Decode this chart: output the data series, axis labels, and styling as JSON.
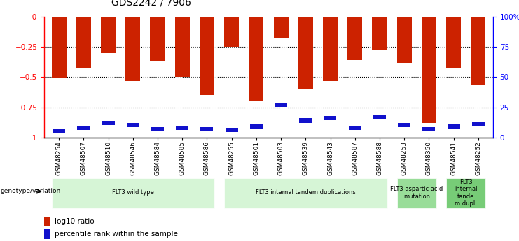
{
  "title": "GDS2242 / 7906",
  "samples": [
    "GSM48254",
    "GSM48507",
    "GSM48510",
    "GSM48546",
    "GSM48584",
    "GSM48585",
    "GSM48586",
    "GSM48255",
    "GSM48501",
    "GSM48503",
    "GSM48539",
    "GSM48543",
    "GSM48587",
    "GSM48588",
    "GSM48253",
    "GSM48350",
    "GSM48541",
    "GSM48252"
  ],
  "log10_ratio": [
    -0.51,
    -0.43,
    -0.3,
    -0.53,
    -0.37,
    -0.5,
    -0.65,
    -0.25,
    -0.7,
    -0.18,
    -0.6,
    -0.53,
    -0.36,
    -0.27,
    -0.38,
    -0.88,
    -0.43,
    -0.57
  ],
  "percentile_rank": [
    5,
    8,
    12,
    10,
    7,
    8,
    7,
    6,
    9,
    27,
    14,
    16,
    8,
    17,
    10,
    7,
    9,
    11
  ],
  "bar_color": "#cc2200",
  "blue_color": "#1111cc",
  "ylim_left": [
    -1,
    0
  ],
  "ylim_right": [
    0,
    100
  ],
  "yticks_left": [
    0,
    -0.25,
    -0.5,
    -0.75,
    -1
  ],
  "ytick_labels_left": [
    "−0",
    "−0.25",
    "−0.5",
    "−0.75",
    "−1"
  ],
  "yticks_right": [
    100,
    75,
    50,
    25,
    0
  ],
  "ytick_labels_right": [
    "100%",
    "75",
    "50",
    "25",
    "0"
  ],
  "groups": [
    {
      "label": "FLT3 wild type",
      "start": 0,
      "end": 6,
      "color": "#d6f5d6"
    },
    {
      "label": "FLT3 internal tandem duplications",
      "start": 7,
      "end": 13,
      "color": "#d6f5d6"
    },
    {
      "label": "FLT3 aspartic acid\nmutation",
      "start": 14,
      "end": 15,
      "color": "#99dd99"
    },
    {
      "label": "FLT3\ninternal\ntande\nm dupli",
      "start": 16,
      "end": 17,
      "color": "#77cc77"
    }
  ],
  "legend_label_red": "log10 ratio",
  "legend_label_blue": "percentile rank within the sample",
  "genotype_label": "genotype/variation"
}
